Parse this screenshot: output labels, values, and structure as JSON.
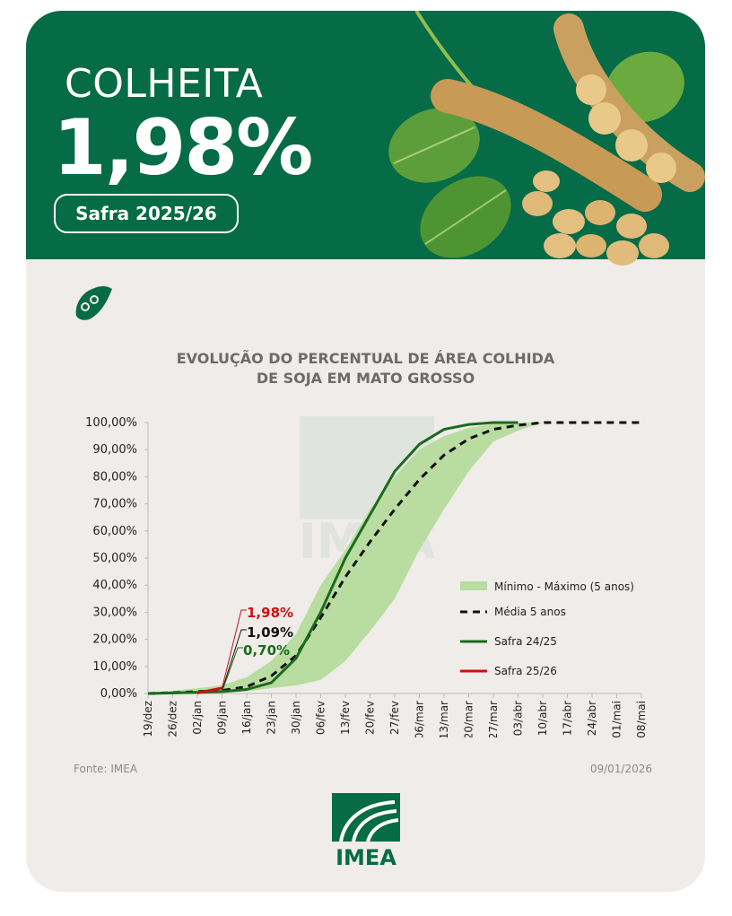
{
  "header": {
    "kicker": "COLHEITA",
    "value": "1,98%",
    "safra": "Safra 2025/26"
  },
  "footer": {
    "fonte": "Fonte: IMEA",
    "date": "09/01/2026",
    "logo_text": "IMEA"
  },
  "colors": {
    "brand_green": "#066b47",
    "band": "#b9dca0",
    "media": "#111111",
    "safra_2425": "#1a6b1a",
    "safra_2526": "#cc1111",
    "background": "#efece9"
  },
  "chart_data": {
    "type": "line",
    "title_lines": [
      "EVOLUÇÃO DO PERCENTUAL DE ÁREA COLHIDA",
      "DE SOJA EM MATO GROSSO"
    ],
    "categories": [
      "19/dez",
      "26/dez",
      "02/jan",
      "09/jan",
      "16/jan",
      "23/jan",
      "30/jan",
      "06/fev",
      "13/fev",
      "20/fev",
      "27/fev",
      "06/mar",
      "13/mar",
      "20/mar",
      "27/mar",
      "03/abr",
      "10/abr",
      "17/abr",
      "24/abr",
      "01/mai",
      "08/mai"
    ],
    "ylim": [
      0,
      100
    ],
    "y_ticks": [
      "0,00%",
      "10,00%",
      "20,00%",
      "30,00%",
      "40,00%",
      "50,00%",
      "60,00%",
      "70,00%",
      "80,00%",
      "90,00%",
      "100,00%"
    ],
    "band": {
      "name": "Mínimo - Máximo (5 anos)",
      "lower": [
        0,
        0,
        0,
        0.3,
        0.8,
        2,
        3,
        5,
        12,
        23,
        35,
        53,
        68,
        82,
        93,
        97,
        100,
        100,
        100,
        100,
        100
      ],
      "upper": [
        0,
        1,
        2,
        3,
        6,
        12,
        22,
        40,
        53,
        68,
        80,
        90,
        95,
        98,
        99.5,
        100,
        100,
        100,
        100,
        100,
        100
      ]
    },
    "series": [
      {
        "name": "Média 5 anos",
        "values": [
          0,
          0.3,
          0.7,
          1.09,
          2.5,
          6.5,
          14,
          28,
          43,
          56,
          68,
          79,
          88,
          94,
          97.5,
          99,
          100,
          100,
          100,
          100,
          100
        ]
      },
      {
        "name": "Safra 24/25",
        "values": [
          0,
          0.2,
          0.4,
          0.7,
          1.5,
          4,
          13,
          30,
          50,
          66,
          82,
          92,
          97.5,
          99.3,
          100,
          100,
          null,
          null,
          null,
          null,
          null
        ]
      },
      {
        "name": "Safra 25/26",
        "values": [
          null,
          null,
          0.2,
          1.98,
          null,
          null,
          null,
          null,
          null,
          null,
          null,
          null,
          null,
          null,
          null,
          null,
          null,
          null,
          null,
          null,
          null
        ]
      }
    ],
    "annotations": [
      {
        "text": "1,98%",
        "series": "Safra 25/26"
      },
      {
        "text": "1,09%",
        "series": "Média 5 anos"
      },
      {
        "text": "0,70%",
        "series": "Safra 24/25"
      }
    ],
    "legend_position": "right"
  }
}
